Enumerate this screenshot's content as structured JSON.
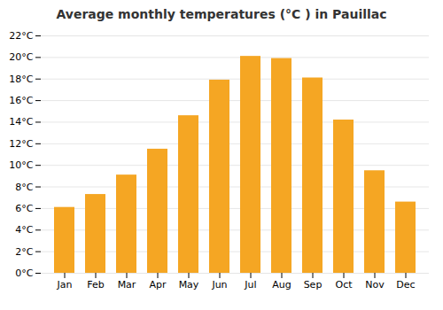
{
  "chart_data": {
    "type": "bar",
    "title": "Average monthly temperatures (°C ) in Pauillac",
    "categories": [
      "Jan",
      "Feb",
      "Mar",
      "Apr",
      "May",
      "Jun",
      "Jul",
      "Aug",
      "Sep",
      "Oct",
      "Nov",
      "Dec"
    ],
    "values": [
      6.1,
      7.3,
      9.1,
      11.5,
      14.6,
      17.9,
      20.1,
      19.9,
      18.1,
      14.2,
      9.5,
      6.6
    ],
    "color": "#F5A623",
    "ylim": [
      0,
      22
    ],
    "yticks": [
      {
        "value": 0,
        "label": "0°C"
      },
      {
        "value": 2,
        "label": "2°C"
      },
      {
        "value": 4,
        "label": "4°C"
      },
      {
        "value": 6,
        "label": "6°C"
      },
      {
        "value": 8,
        "label": "8°C"
      },
      {
        "value": 10,
        "label": "10°C"
      },
      {
        "value": 12,
        "label": "12°C"
      },
      {
        "value": 14,
        "label": "14°C"
      },
      {
        "value": 16,
        "label": "16°C"
      },
      {
        "value": 18,
        "label": "18°C"
      },
      {
        "value": 20,
        "label": "20°C"
      },
      {
        "value": 22,
        "label": "22°C"
      }
    ],
    "grid": true
  }
}
